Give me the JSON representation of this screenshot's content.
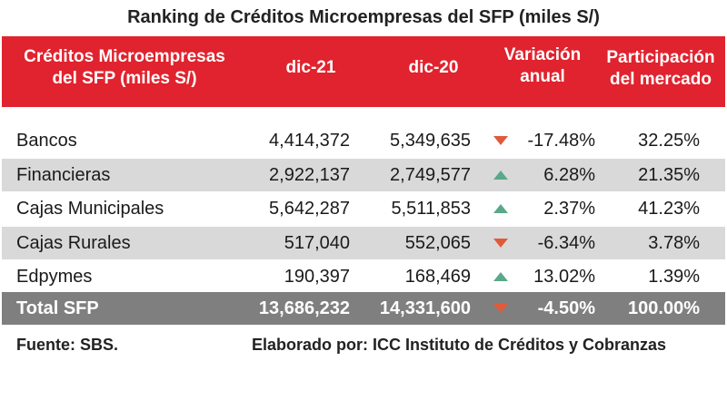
{
  "title": "Ranking de Créditos Microempresas del SFP (miles S/)",
  "header": {
    "name_line1": "Créditos Microempresas",
    "name_line2": "del SFP (miles S/)",
    "col_dic21": "dic-21",
    "col_dic20": "dic-20",
    "col_var_line1": "Variación",
    "col_var_line2": "anual",
    "col_par_line1": "Participación",
    "col_par_line2": "del mercado"
  },
  "colors": {
    "header_bg": "#e0232e",
    "alt_row_bg": "#d9d9d9",
    "total_row_bg": "#7f7f7f",
    "arrow_down": "#e05a3a",
    "arrow_up": "#5aa889"
  },
  "rows": [
    {
      "name": "Bancos",
      "dic21": "4,414,372",
      "dic20": "5,349,635",
      "trend": "down-arrow-icon",
      "var": "-17.48%",
      "par": "32.25%"
    },
    {
      "name": "Financieras",
      "dic21": "2,922,137",
      "dic20": "2,749,577",
      "trend": "up-arrow-icon",
      "var": "6.28%",
      "par": "21.35%"
    },
    {
      "name": "Cajas Municipales",
      "dic21": "5,642,287",
      "dic20": "5,511,853",
      "trend": "up-arrow-icon",
      "var": "2.37%",
      "par": "41.23%"
    },
    {
      "name": "Cajas Rurales",
      "dic21": "517,040",
      "dic20": "552,065",
      "trend": "down-arrow-icon",
      "var": "-6.34%",
      "par": "3.78%"
    },
    {
      "name": "Edpymes",
      "dic21": "190,397",
      "dic20": "168,469",
      "trend": "up-arrow-icon",
      "var": "13.02%",
      "par": "1.39%"
    }
  ],
  "total": {
    "name": "Total SFP",
    "dic21": "13,686,232",
    "dic20": "14,331,600",
    "trend": "down-arrow-icon",
    "var": "-4.50%",
    "par": "100.00%"
  },
  "footer": {
    "source": "Fuente: SBS.",
    "credit": "Elaborado por: ICC Instituto de Créditos y Cobranzas"
  }
}
